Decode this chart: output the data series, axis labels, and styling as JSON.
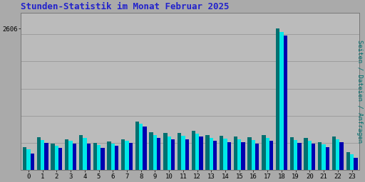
{
  "title": "Stunden-Statistik im Monat Februar 2025",
  "hours": [
    0,
    1,
    2,
    3,
    4,
    5,
    6,
    7,
    8,
    9,
    10,
    11,
    12,
    13,
    14,
    15,
    16,
    17,
    18,
    19,
    20,
    21,
    22,
    23
  ],
  "seiten": [
    420,
    600,
    490,
    570,
    640,
    500,
    530,
    570,
    900,
    700,
    680,
    680,
    720,
    640,
    630,
    620,
    600,
    640,
    2606,
    600,
    590,
    520,
    620,
    330
  ],
  "dateien": [
    380,
    560,
    450,
    535,
    590,
    460,
    495,
    540,
    855,
    650,
    620,
    635,
    670,
    590,
    575,
    565,
    550,
    590,
    2540,
    550,
    545,
    475,
    570,
    290
  ],
  "anfragen": [
    300,
    505,
    405,
    485,
    490,
    415,
    450,
    500,
    800,
    590,
    565,
    570,
    615,
    535,
    520,
    510,
    493,
    535,
    2480,
    500,
    495,
    425,
    510,
    230
  ],
  "color_seiten": "#007070",
  "color_dateien": "#00e8e8",
  "color_anfragen": "#0000b0",
  "bg_color": "#aaaaaa",
  "plot_bg": "#bbbbbb",
  "title_color": "#2222cc",
  "ylabel_right_color": "#007070",
  "ylim_max": 2900,
  "ytick_val": 2606,
  "bar_width": 0.27,
  "grid_color": "#999999",
  "grid_linewidth": 0.6
}
